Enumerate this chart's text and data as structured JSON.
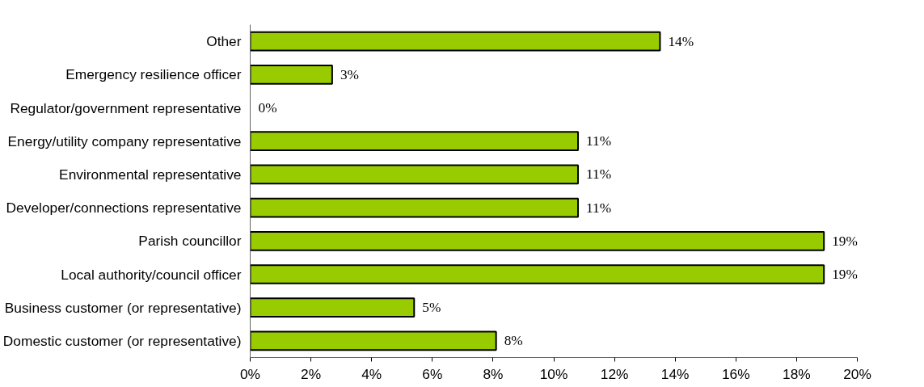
{
  "chart_data": {
    "type": "bar",
    "orientation": "horizontal",
    "categories": [
      "Other",
      "Emergency resilience officer",
      "Regulator/government representative",
      "Energy/utility company representative",
      "Environmental representative",
      "Developer/connections representative",
      "Parish councillor",
      "Local authority/council officer",
      "Business customer (or representative)",
      "Domestic customer (or representative)"
    ],
    "values": [
      13.5,
      2.7,
      0,
      10.8,
      10.8,
      10.8,
      18.9,
      18.9,
      5.4,
      8.1
    ],
    "value_labels": [
      "14%",
      "3%",
      "0%",
      "11%",
      "11%",
      "11%",
      "19%",
      "19%",
      "5%",
      "8%"
    ],
    "color": "#99cc00",
    "xlim": [
      0,
      20
    ],
    "xticks": [
      {
        "value": 0,
        "label": "0%"
      },
      {
        "value": 2,
        "label": "2%"
      },
      {
        "value": 4,
        "label": "4%"
      },
      {
        "value": 6,
        "label": "6%"
      },
      {
        "value": 8,
        "label": "8%"
      },
      {
        "value": 10,
        "label": "10%"
      },
      {
        "value": 12,
        "label": "12%"
      },
      {
        "value": 14,
        "label": "14%"
      },
      {
        "value": 16,
        "label": "16%"
      },
      {
        "value": 18,
        "label": "18%"
      },
      {
        "value": 20,
        "label": "20%"
      }
    ],
    "grid": false
  }
}
